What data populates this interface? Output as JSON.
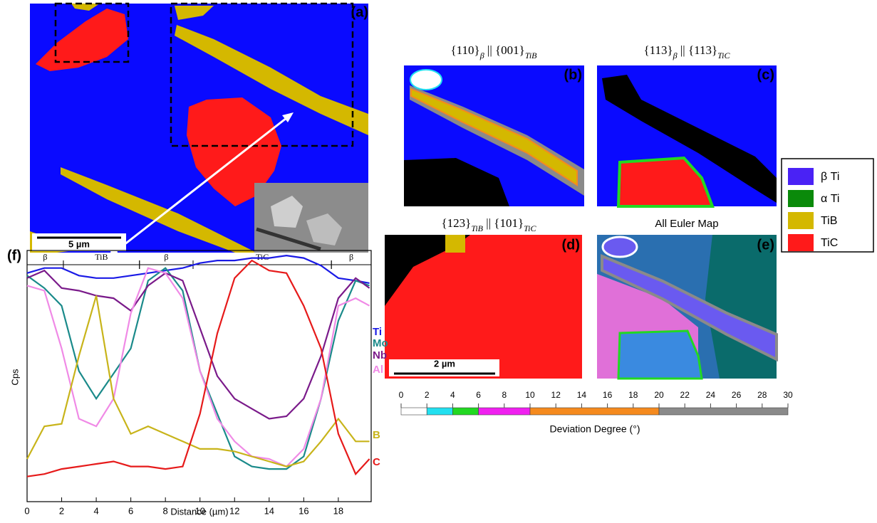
{
  "panels": {
    "a": {
      "label": "(a)",
      "scale_bar": "5 µm"
    },
    "b": {
      "label": "(b)",
      "title": [
        {
          "text": "{110}"
        },
        {
          "text": "β",
          "sub": true
        },
        {
          "text": " || {001}"
        },
        {
          "text": "TiB",
          "sub": true
        }
      ]
    },
    "c": {
      "label": "(c)",
      "title": [
        {
          "text": "{113}"
        },
        {
          "text": "β",
          "sub": true
        },
        {
          "text": " || {113}"
        },
        {
          "text": "TiC",
          "sub": true
        }
      ]
    },
    "d": {
      "label": "(d)",
      "title": [
        {
          "text": "{123}"
        },
        {
          "text": "TiB",
          "sub": true
        },
        {
          "text": " || {101}"
        },
        {
          "text": "TiC",
          "sub": true
        }
      ],
      "scale_bar": "2 µm"
    },
    "e": {
      "label": "(e)",
      "title": [
        {
          "text": "All Euler Map"
        }
      ]
    }
  },
  "legend": [
    {
      "name": "β Ti",
      "color": "#4a22f5"
    },
    {
      "name": "α Ti",
      "color": "#0a8a0a"
    },
    {
      "name": "TiB",
      "color": "#d4b800"
    },
    {
      "name": "TiC",
      "color": "#ff1a1a"
    }
  ],
  "colorbar": {
    "xlabel": "Deviation Degree (°)",
    "xlim": [
      0,
      30
    ],
    "xticks": [
      0,
      2,
      4,
      6,
      8,
      10,
      12,
      14,
      16,
      18,
      20,
      22,
      24,
      26,
      28,
      30
    ],
    "segments": [
      {
        "start": 0,
        "end": 2,
        "color": "#ffffff"
      },
      {
        "start": 2,
        "end": 4,
        "color": "#22e0f0"
      },
      {
        "start": 4,
        "end": 6,
        "color": "#22d822"
      },
      {
        "start": 6,
        "end": 10,
        "color": "#f020f0"
      },
      {
        "start": 10,
        "end": 20,
        "color": "#f58a1e"
      },
      {
        "start": 20,
        "end": 30,
        "color": "#8a8a8a"
      }
    ]
  },
  "chart_data": {
    "type": "line",
    "label": "(f)",
    "xlabel": "Distance (µm)",
    "ylabel": "Cps",
    "x": [
      0,
      1,
      2,
      3,
      4,
      5,
      6,
      7,
      8,
      9,
      10,
      11,
      12,
      13,
      14,
      15,
      16,
      17,
      18,
      19,
      19.8
    ],
    "xlim": [
      0,
      19.9
    ],
    "xticks": [
      0,
      2,
      4,
      6,
      8,
      10,
      12,
      14,
      16,
      18
    ],
    "ylim": [
      0,
      100
    ],
    "phases": [
      {
        "label": "β",
        "start": 0,
        "end": 2.1
      },
      {
        "label": "TiB",
        "start": 2.1,
        "end": 6.5
      },
      {
        "label": "β",
        "start": 6.5,
        "end": 9.6
      },
      {
        "label": "TiC",
        "start": 9.6,
        "end": 17.6
      },
      {
        "label": "β",
        "start": 17.6,
        "end": 19.9
      }
    ],
    "series": [
      {
        "name": "Ti",
        "color": "#1a1ae6",
        "values": [
          91,
          93,
          93,
          90,
          89,
          89,
          90,
          91,
          92,
          93,
          95,
          96,
          96,
          97,
          97,
          98,
          97,
          94,
          89,
          88,
          87
        ]
      },
      {
        "name": "Mo",
        "color": "#1a8a8a",
        "values": [
          90,
          85,
          78,
          52,
          41,
          51,
          61,
          88,
          93,
          84,
          52,
          35,
          18,
          14,
          13,
          13,
          18,
          41,
          72,
          88,
          86
        ]
      },
      {
        "name": "Nb",
        "color": "#7a1a8a",
        "values": [
          89,
          92,
          85,
          84,
          82,
          81,
          76,
          86,
          91,
          88,
          69,
          50,
          41,
          37,
          33,
          34,
          41,
          58,
          81,
          89,
          85
        ]
      },
      {
        "name": "Al",
        "color": "#f08ae6",
        "values": [
          86,
          84,
          61,
          33,
          30,
          41,
          75,
          93,
          91,
          81,
          52,
          33,
          24,
          18,
          17,
          14,
          21,
          41,
          78,
          81,
          78
        ]
      },
      {
        "name": "B",
        "color": "#c8b41a",
        "values": [
          17,
          30,
          31,
          58,
          82,
          41,
          27,
          30,
          27,
          24,
          21,
          21,
          20,
          18,
          16,
          14,
          16,
          24,
          33,
          24,
          24
        ]
      },
      {
        "name": "C",
        "color": "#e61a1a",
        "values": [
          10,
          11,
          13,
          14,
          15,
          16,
          14,
          14,
          13,
          14,
          35,
          67,
          89,
          96,
          92,
          91,
          78,
          61,
          27,
          11,
          17
        ]
      }
    ]
  }
}
